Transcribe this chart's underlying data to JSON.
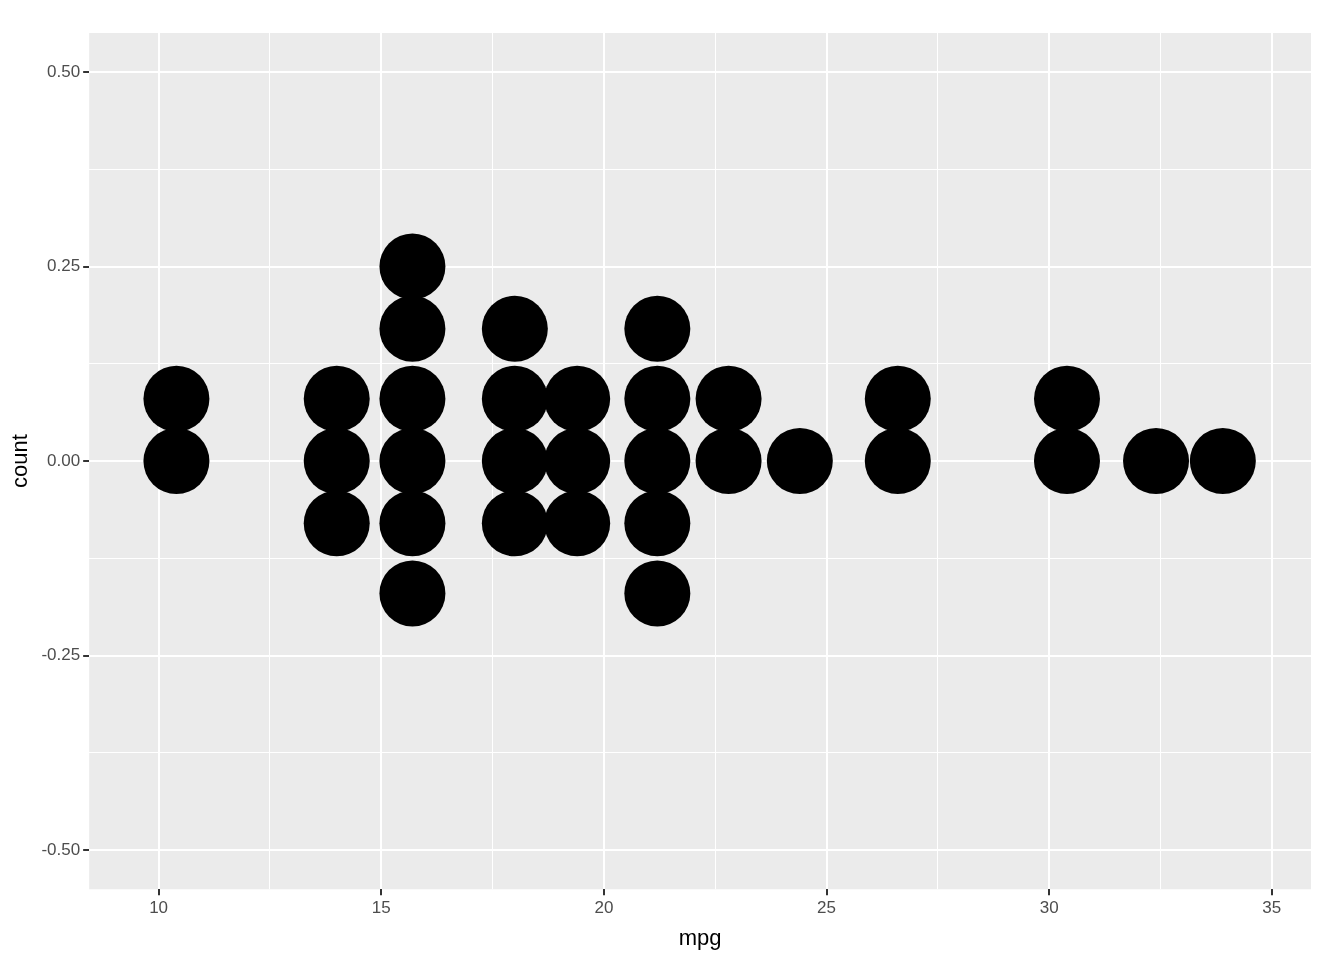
{
  "chart_data": {
    "type": "scatter",
    "xlabel": "mpg",
    "ylabel": "count",
    "series": [
      {
        "color": "#000000",
        "x": [
          10.4,
          10.4,
          14.0,
          14.0,
          14.0,
          15.7,
          15.7,
          15.7,
          15.7,
          15.7,
          15.7,
          18.0,
          18.0,
          18.0,
          18.0,
          19.4,
          19.4,
          19.4,
          21.2,
          21.2,
          21.2,
          21.2,
          21.2,
          22.8,
          22.8,
          24.4,
          26.6,
          26.6,
          30.4,
          30.4,
          32.4,
          33.9
        ],
        "values": [
          0.08,
          0,
          0.08,
          0,
          -0.08,
          0.25,
          0.17,
          0.08,
          0,
          -0.08,
          -0.17,
          0.17,
          0.08,
          0,
          -0.08,
          0.08,
          0,
          -0.08,
          0.17,
          0.08,
          0,
          -0.08,
          -0.17,
          0.08,
          0,
          0,
          0.08,
          0,
          0.08,
          0,
          0,
          0
        ]
      }
    ],
    "xlim": [
      8.44,
      35.88
    ],
    "xticks": [
      10,
      {
        "value": 12.5,
        "label": null
      },
      15,
      {
        "value": 17.5,
        "label": null
      },
      20,
      {
        "value": 22.5,
        "label": null
      },
      25,
      {
        "value": 27.5,
        "label": null
      },
      30,
      {
        "value": 32.5,
        "label": null
      },
      35
    ],
    "ylim": [
      -0.55,
      0.55
    ],
    "yticks": [
      {
        "value": -0.5,
        "label": "-0.50"
      },
      {
        "value": -0.375,
        "label": null
      },
      {
        "value": -0.25,
        "label": "-0.25"
      },
      {
        "value": -0.125,
        "label": null
      },
      {
        "value": 0,
        "label": "0.00"
      },
      {
        "value": 0.125,
        "label": null
      },
      {
        "value": 0.25,
        "label": "0.25"
      },
      {
        "value": 0.375,
        "label": null
      },
      {
        "value": 0.5,
        "label": "0.50"
      }
    ],
    "grid": true,
    "legend": false,
    "marker": "circle"
  }
}
